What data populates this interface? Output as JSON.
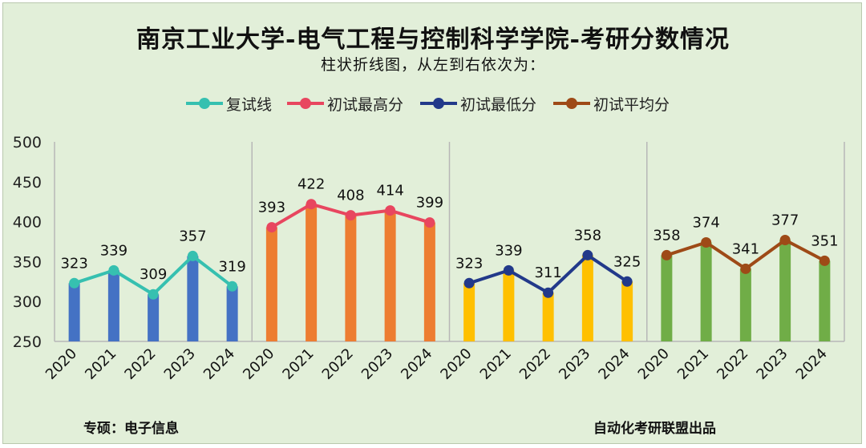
{
  "title": "南京工业大学-电气工程与控制科学学院-考研分数情况",
  "subtitle": "柱状折线图，从左到右依次为：",
  "footer": {
    "left": "专硕：电子信息",
    "right": "自动化考研联盟出品"
  },
  "chart_data": {
    "type": "bar+line",
    "title": "南京工业大学-电气工程与控制科学学院-考研分数情况",
    "subtitle": "柱状折线图，从左到右依次为：",
    "ylim": [
      250,
      500
    ],
    "yticks": [
      "250",
      "300",
      "350",
      "400",
      "450",
      "500"
    ],
    "categories": [
      "2020",
      "2021",
      "2022",
      "2023",
      "2024"
    ],
    "legend_position": "top",
    "panels": [
      {
        "name": "复试线",
        "bar_color": "#4472c4",
        "line_color": "#36c0b0",
        "values": [
          323,
          339,
          309,
          357,
          319
        ],
        "labels": [
          "323",
          "339",
          "309",
          "357",
          "319"
        ]
      },
      {
        "name": "初试最高分",
        "bar_color": "#ed7d31",
        "line_color": "#e8465f",
        "values": [
          393,
          422,
          408,
          414,
          399
        ],
        "labels": [
          "393",
          "422",
          "408",
          "414",
          "399"
        ]
      },
      {
        "name": "初试最低分",
        "bar_color": "#ffc000",
        "line_color": "#22398a",
        "values": [
          323,
          339,
          311,
          358,
          325
        ],
        "labels": [
          "323",
          "339",
          "311",
          "358",
          "325"
        ]
      },
      {
        "name": "初试平均分",
        "bar_color": "#70ad47",
        "line_color": "#9e4a17",
        "values": [
          358,
          374,
          341,
          377,
          351
        ],
        "labels": [
          "358",
          "374",
          "341",
          "377",
          "351"
        ]
      }
    ]
  }
}
